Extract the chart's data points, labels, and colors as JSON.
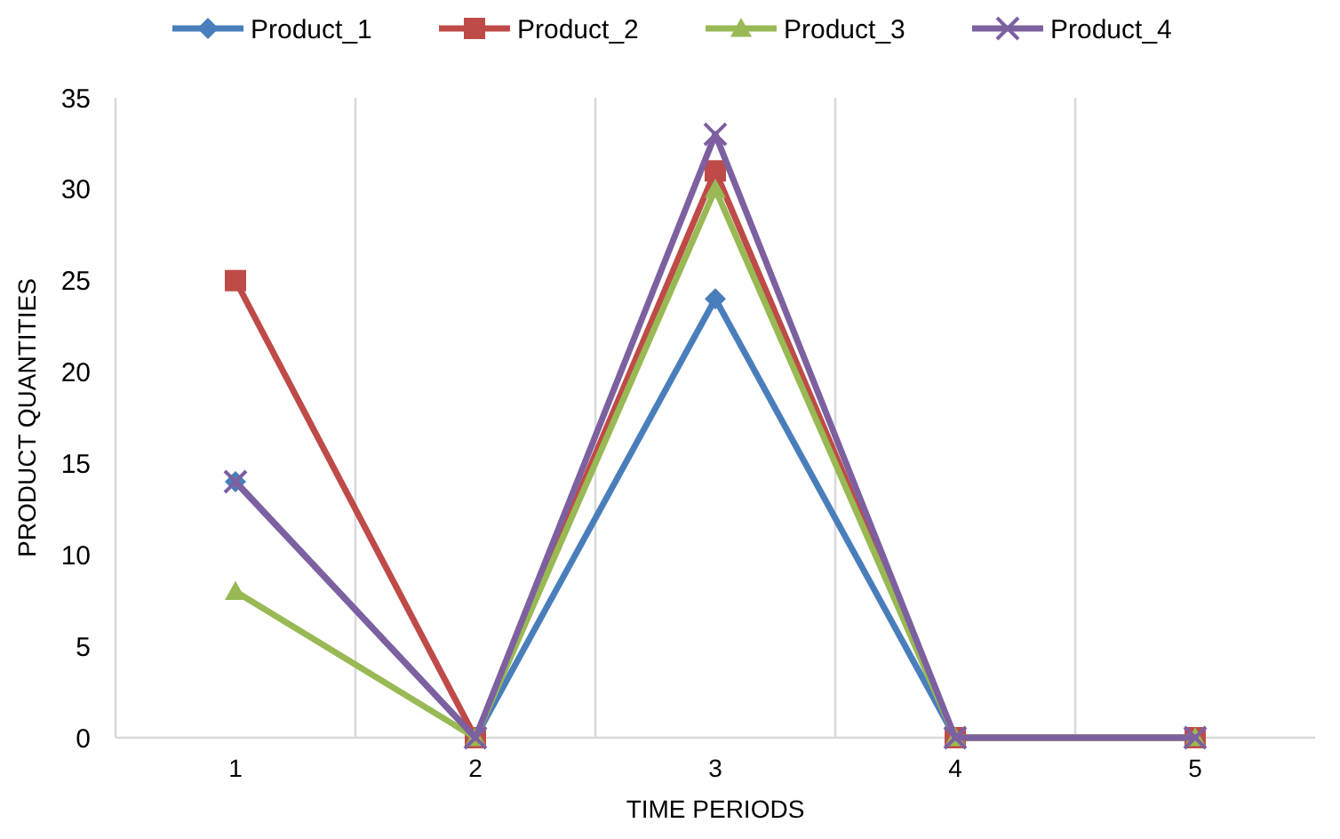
{
  "chart_data": {
    "type": "line",
    "xlabel": "TIME PERIODS",
    "ylabel": "PRODUCT QUANTITIES",
    "categories": [
      "1",
      "2",
      "3",
      "4",
      "5"
    ],
    "ylim": [
      0,
      35
    ],
    "yticks": [
      0,
      5,
      10,
      15,
      20,
      25,
      30,
      35
    ],
    "grid": "x",
    "legend": "top",
    "series": [
      {
        "name": "Product_1",
        "color": "#4a7ebb",
        "marker": "diamond",
        "values": [
          14,
          0,
          24,
          0,
          0
        ]
      },
      {
        "name": "Product_2",
        "color": "#be4b48",
        "marker": "square",
        "values": [
          25,
          0,
          31,
          0,
          0
        ]
      },
      {
        "name": "Product_3",
        "color": "#98b954",
        "marker": "triangle",
        "values": [
          8,
          0,
          30,
          0,
          0
        ]
      },
      {
        "name": "Product_4",
        "color": "#7d60a0",
        "marker": "cross",
        "values": [
          14,
          0,
          33,
          0,
          0
        ]
      }
    ]
  }
}
